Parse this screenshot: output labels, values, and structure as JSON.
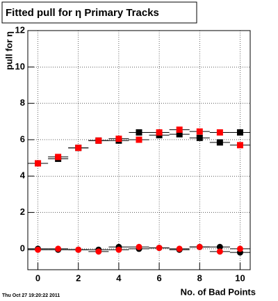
{
  "chart_data": {
    "type": "scatter",
    "title": "Fitted pull for  η Primary Tracks",
    "xlabel": "No. of Bad Points",
    "ylabel": "pull for η",
    "footer": "Thu Oct 27 19:20:22 2011",
    "x": [
      0,
      1,
      2,
      3,
      4,
      5,
      6,
      7,
      8,
      9,
      10
    ],
    "series": [
      {
        "color": "#000000",
        "marker": "square",
        "values": [
          4.7,
          4.95,
          5.55,
          5.95,
          5.95,
          6.4,
          6.25,
          6.3,
          6.1,
          5.85,
          6.4
        ]
      },
      {
        "color": "#ff0000",
        "marker": "square",
        "values": [
          4.7,
          5.05,
          5.55,
          5.95,
          6.05,
          6.0,
          6.4,
          6.55,
          6.45,
          6.4,
          5.7
        ]
      },
      {
        "color": "#000000",
        "marker": "circle",
        "values": [
          0.0,
          -0.05,
          -0.05,
          -0.05,
          0.1,
          0.0,
          0.05,
          -0.05,
          0.1,
          0.1,
          -0.2
        ]
      },
      {
        "color": "#ff0000",
        "marker": "circle",
        "values": [
          -0.05,
          0.0,
          -0.05,
          -0.15,
          -0.05,
          0.1,
          0.05,
          0.0,
          0.1,
          -0.15,
          0.0
        ]
      }
    ],
    "xlim": [
      -0.5,
      10.5
    ],
    "xticks": [
      0,
      2,
      4,
      6,
      8,
      10
    ],
    "ylim": [
      -1.15,
      12
    ],
    "yticks": [
      0,
      2,
      4,
      6,
      8,
      10,
      12
    ],
    "grid": true
  }
}
